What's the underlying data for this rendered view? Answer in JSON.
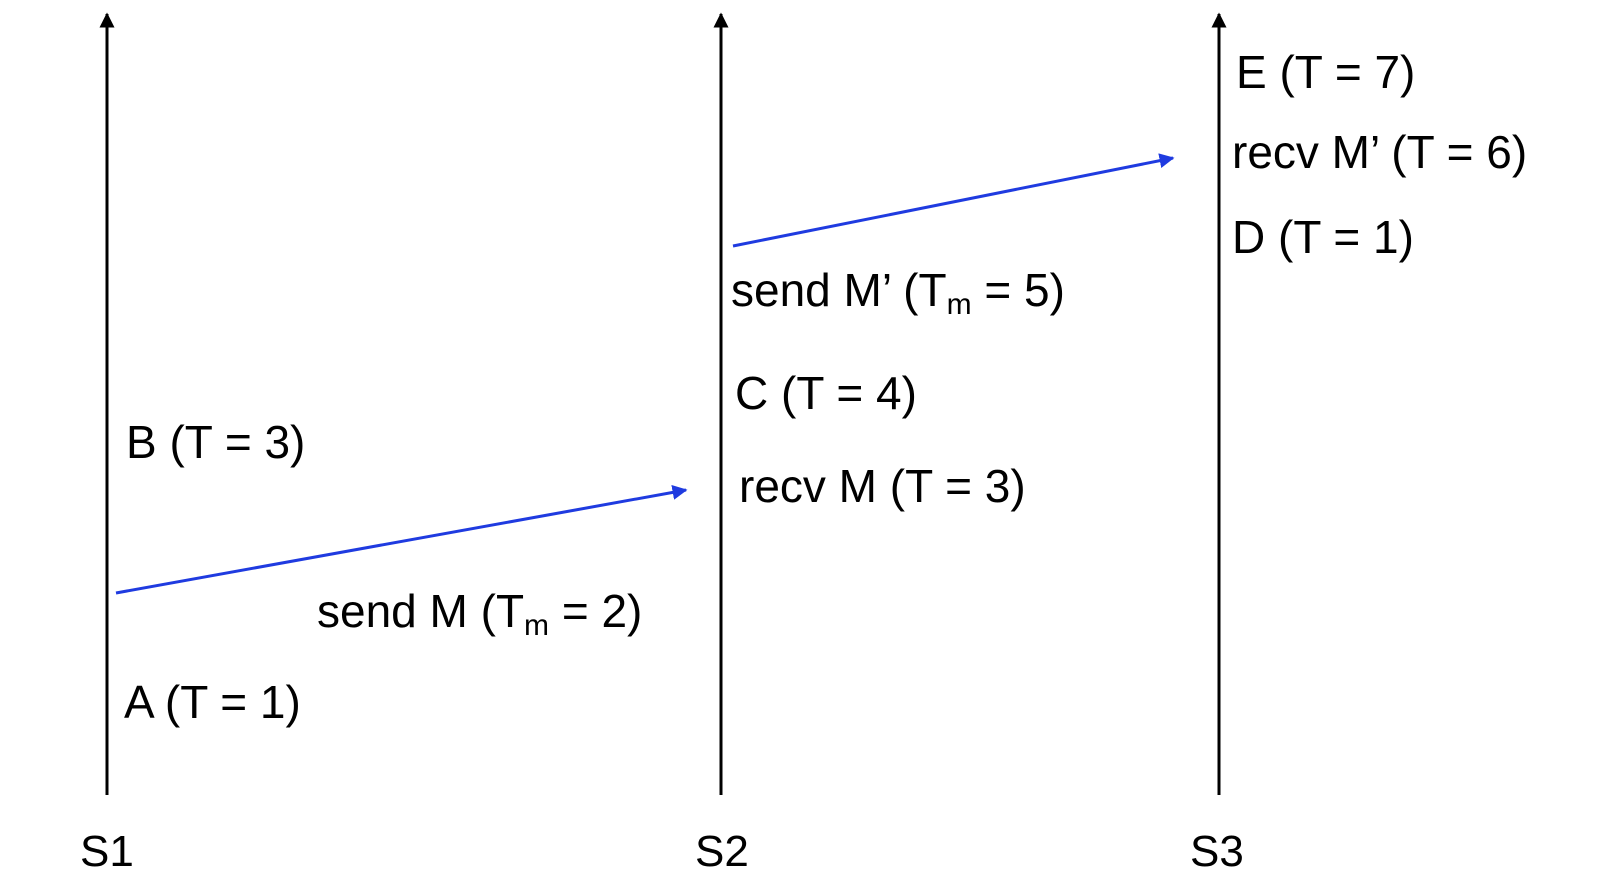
{
  "colors": {
    "timeline": "#000000",
    "message": "#1f3be0",
    "background": "#ffffff"
  },
  "processes": [
    {
      "id": "s1",
      "label": "S1"
    },
    {
      "id": "s2",
      "label": "S2"
    },
    {
      "id": "s3",
      "label": "S3"
    }
  ],
  "events": {
    "s1": {
      "b": "B  (T = 3)",
      "a": "A (T = 1)"
    },
    "s2": {
      "c": "C (T = 4)",
      "recv_m": "recv M (T = 3)"
    },
    "s3": {
      "e": "E (T = 7)",
      "recv_m_prime": "recv M’ (T = 6)",
      "d": "D (T = 1)"
    }
  },
  "messages": {
    "m": {
      "label_prefix": "send M (T",
      "label_sub": "m",
      "label_suffix": " = 2)"
    },
    "m_prime": {
      "label_prefix": "send M’ (T",
      "label_sub": "m",
      "label_suffix": " = 5)"
    }
  }
}
